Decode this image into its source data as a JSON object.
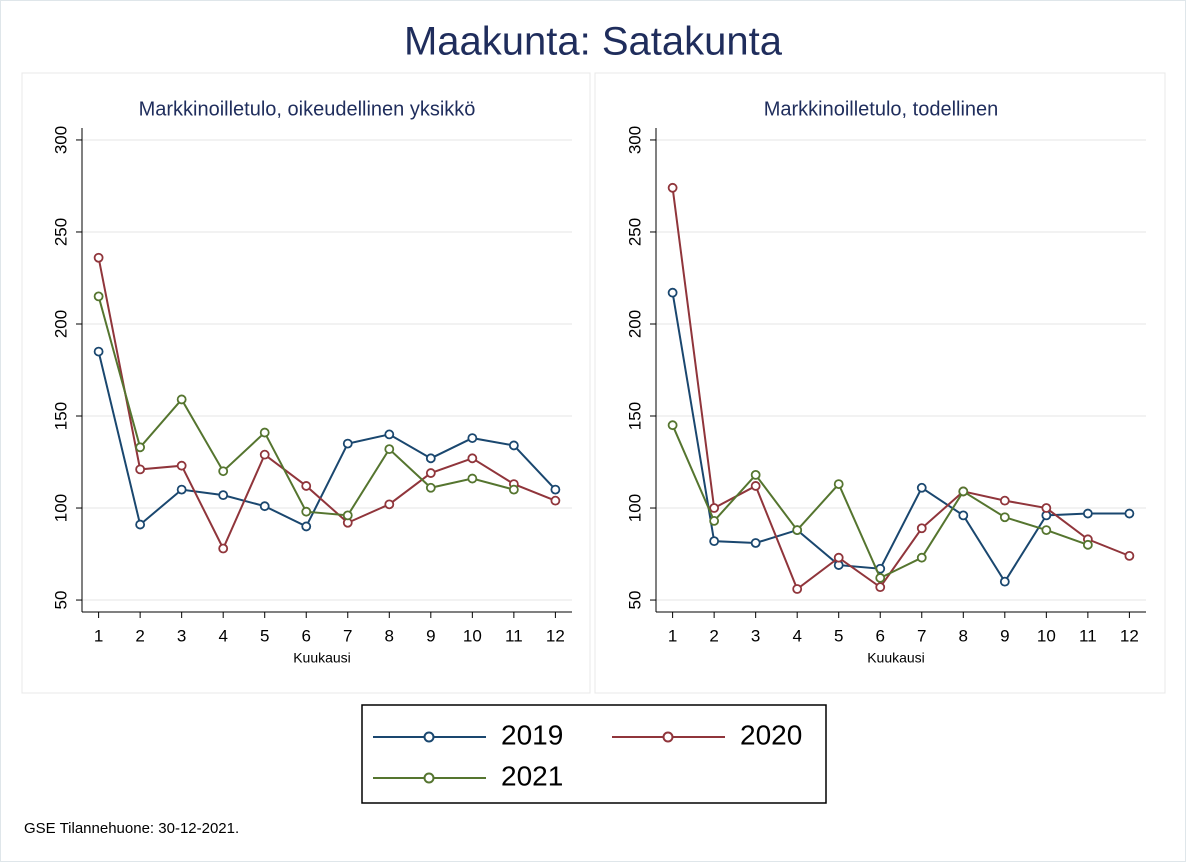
{
  "title": "Maakunta: Satakunta",
  "note": "GSE Tilannehuone: 30-12-2021.",
  "chart_data": [
    {
      "type": "line",
      "title": "Markkinoilletulo, oikeudellinen yksikkö",
      "x_label": "Kuukausi",
      "x": [
        1,
        2,
        3,
        4,
        5,
        6,
        7,
        8,
        9,
        10,
        11,
        12
      ],
      "xlim": [
        0.6,
        12.4
      ],
      "xticks": [
        1,
        2,
        3,
        4,
        5,
        6,
        7,
        8,
        9,
        10,
        11,
        12
      ],
      "ylim": [
        43.5,
        306.5
      ],
      "yticks": [
        50,
        100,
        150,
        200,
        250,
        300
      ],
      "grid": true,
      "series": [
        {
          "name": "2019",
          "color": "#1a476f",
          "values": [
            185,
            91,
            110,
            107,
            101,
            90,
            135,
            140,
            127,
            138,
            134,
            110
          ]
        },
        {
          "name": "2020",
          "color": "#90353b",
          "values": [
            236,
            121,
            123,
            78,
            129,
            112,
            92,
            102,
            119,
            127,
            113,
            104
          ]
        },
        {
          "name": "2021",
          "color": "#55752f",
          "values": [
            215,
            133,
            159,
            120,
            141,
            98,
            96,
            132,
            111,
            116,
            110,
            null
          ]
        }
      ]
    },
    {
      "type": "line",
      "title": "Markkinoilletulo, todellinen",
      "x_label": "Kuukausi",
      "x": [
        1,
        2,
        3,
        4,
        5,
        6,
        7,
        8,
        9,
        10,
        11,
        12
      ],
      "xlim": [
        0.6,
        12.4
      ],
      "xticks": [
        1,
        2,
        3,
        4,
        5,
        6,
        7,
        8,
        9,
        10,
        11,
        12
      ],
      "ylim": [
        43.5,
        306.5
      ],
      "yticks": [
        50,
        100,
        150,
        200,
        250,
        300
      ],
      "grid": true,
      "series": [
        {
          "name": "2019",
          "color": "#1a476f",
          "values": [
            217,
            82,
            81,
            88,
            69,
            67,
            111,
            96,
            60,
            96,
            97,
            97
          ]
        },
        {
          "name": "2020",
          "color": "#90353b",
          "values": [
            274,
            100,
            112,
            56,
            73,
            57,
            89,
            109,
            104,
            100,
            83,
            74
          ]
        },
        {
          "name": "2021",
          "color": "#55752f",
          "values": [
            145,
            93,
            118,
            88,
            113,
            62,
            73,
            109,
            95,
            88,
            80,
            null
          ]
        }
      ]
    }
  ]
}
